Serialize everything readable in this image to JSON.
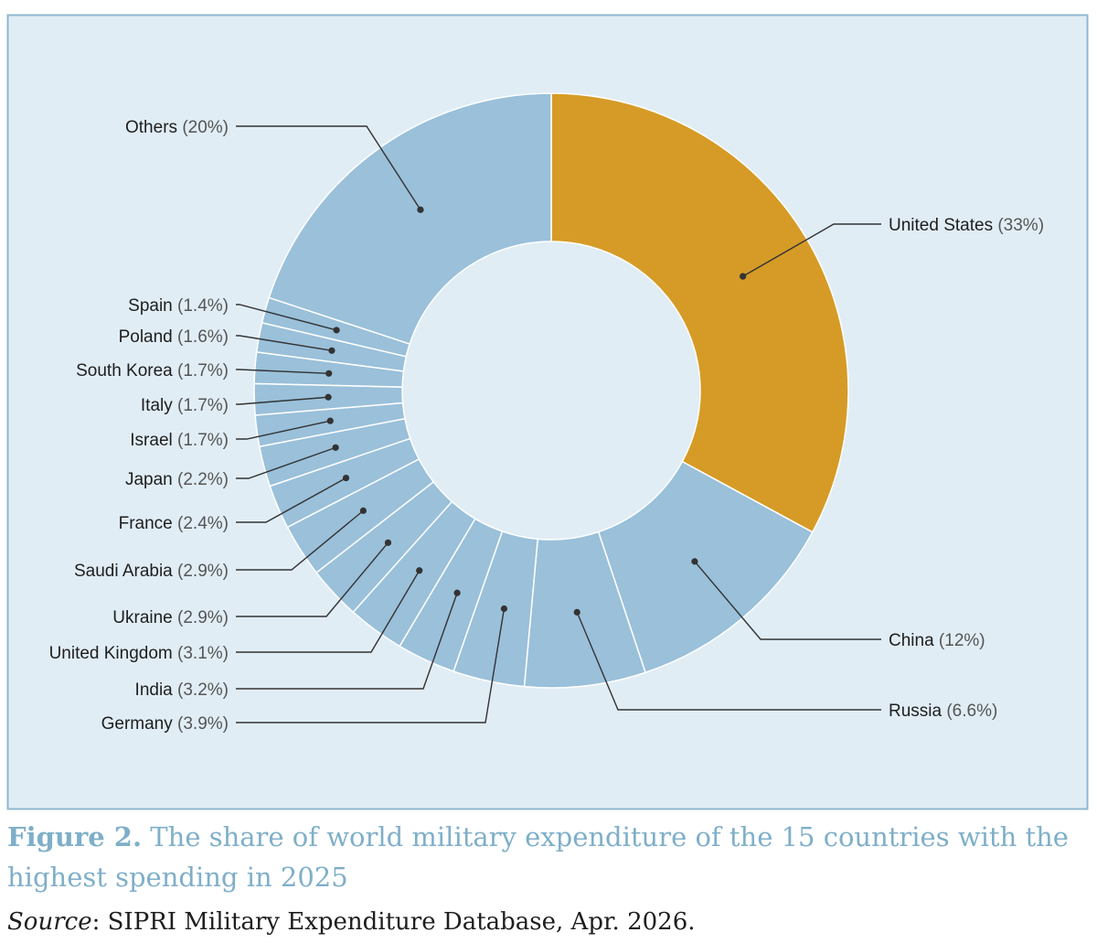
{
  "colors": {
    "panel_bg": "#e1edf5",
    "panel_border": "#8fb8cf",
    "slice_default": "#9ac0da",
    "slice_highlight": "#d69b26",
    "slice_stroke": "#ffffff",
    "leader": "#333333",
    "caption": "#7fafc9"
  },
  "caption": {
    "label": "Figure 2.",
    "text": " The share of world military expenditure of the 15 countries with the highest spending in 2025"
  },
  "source": {
    "label": "Source",
    "text": ": SIPRI Military Expenditure Database, Apr. 2026."
  },
  "chart_data": {
    "type": "pie",
    "donut": true,
    "highlighted": "United States",
    "slices": [
      {
        "name": "United States",
        "pct_label": "(33%)",
        "value": 33
      },
      {
        "name": "China",
        "pct_label": "(12%)",
        "value": 12
      },
      {
        "name": "Russia",
        "pct_label": "(6.6%)",
        "value": 6.6
      },
      {
        "name": "Germany",
        "pct_label": "(3.9%)",
        "value": 3.9
      },
      {
        "name": "India",
        "pct_label": "(3.2%)",
        "value": 3.2
      },
      {
        "name": "United Kingdom",
        "pct_label": "(3.1%)",
        "value": 3.1
      },
      {
        "name": "Ukraine",
        "pct_label": "(2.9%)",
        "value": 2.9
      },
      {
        "name": "Saudi Arabia",
        "pct_label": "(2.9%)",
        "value": 2.9
      },
      {
        "name": "France",
        "pct_label": "(2.4%)",
        "value": 2.4
      },
      {
        "name": "Japan",
        "pct_label": "(2.2%)",
        "value": 2.2
      },
      {
        "name": "Israel",
        "pct_label": "(1.7%)",
        "value": 1.7
      },
      {
        "name": "Italy",
        "pct_label": "(1.7%)",
        "value": 1.7
      },
      {
        "name": "South Korea",
        "pct_label": "(1.7%)",
        "value": 1.7
      },
      {
        "name": "Poland",
        "pct_label": "(1.6%)",
        "value": 1.6
      },
      {
        "name": "Spain",
        "pct_label": "(1.4%)",
        "value": 1.4
      },
      {
        "name": "Others",
        "pct_label": "(20%)",
        "value": 20
      }
    ]
  }
}
